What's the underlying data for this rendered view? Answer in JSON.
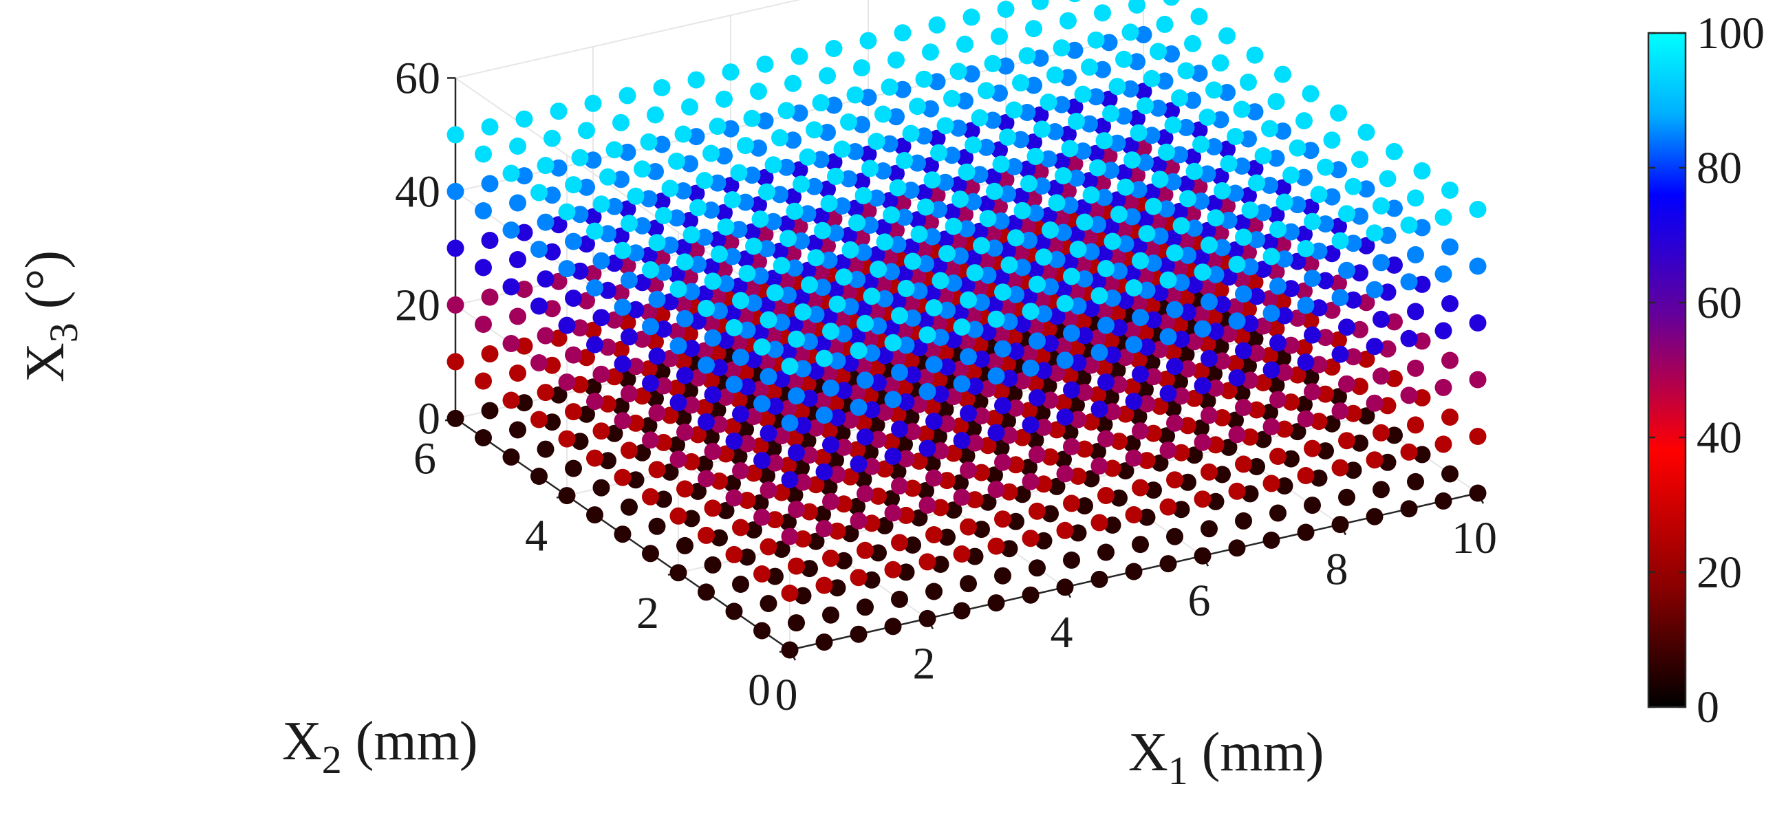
{
  "chart_data": {
    "type": "scatter",
    "dimensions": 3,
    "title": "",
    "axes": {
      "x1": {
        "label_main": "X",
        "label_sub": "1",
        "label_unit": " (mm)",
        "range": [
          0,
          10
        ],
        "ticks": [
          "0",
          "2",
          "4",
          "6",
          "8",
          "10"
        ]
      },
      "x2": {
        "label_main": "X",
        "label_sub": "2",
        "label_unit": " (mm)",
        "range": [
          0,
          6
        ],
        "ticks": [
          "0",
          "2",
          "4",
          "6"
        ]
      },
      "x3": {
        "label_main": "X",
        "label_sub": "3",
        "label_unit": " (°)",
        "range": [
          0,
          60
        ],
        "ticks": [
          "0",
          "20",
          "40",
          "60"
        ]
      }
    },
    "grid": true,
    "point_grid": {
      "x1": [
        0,
        0.5,
        1,
        1.5,
        2,
        2.5,
        3,
        3.5,
        4,
        4.5,
        5,
        5.5,
        6,
        6.5,
        7,
        7.5,
        8,
        8.5,
        9,
        9.5,
        10
      ],
      "x2": [
        0,
        0.5,
        1,
        1.5,
        2,
        2.5,
        3,
        3.5,
        4,
        4.5,
        5,
        5.5,
        6
      ],
      "x3": [
        0,
        10,
        20,
        30,
        40,
        50
      ]
    },
    "color_value_by_x3": [
      5,
      25,
      50,
      70,
      85,
      95
    ],
    "colorbar": {
      "range": [
        0,
        100
      ],
      "ticks": [
        "0",
        "20",
        "40",
        "60",
        "80",
        "100"
      ],
      "stops": [
        "#000000",
        "#8b0000",
        "#ff0000",
        "#660099",
        "#0000ff",
        "#00b0ff",
        "#00ffff"
      ]
    }
  }
}
